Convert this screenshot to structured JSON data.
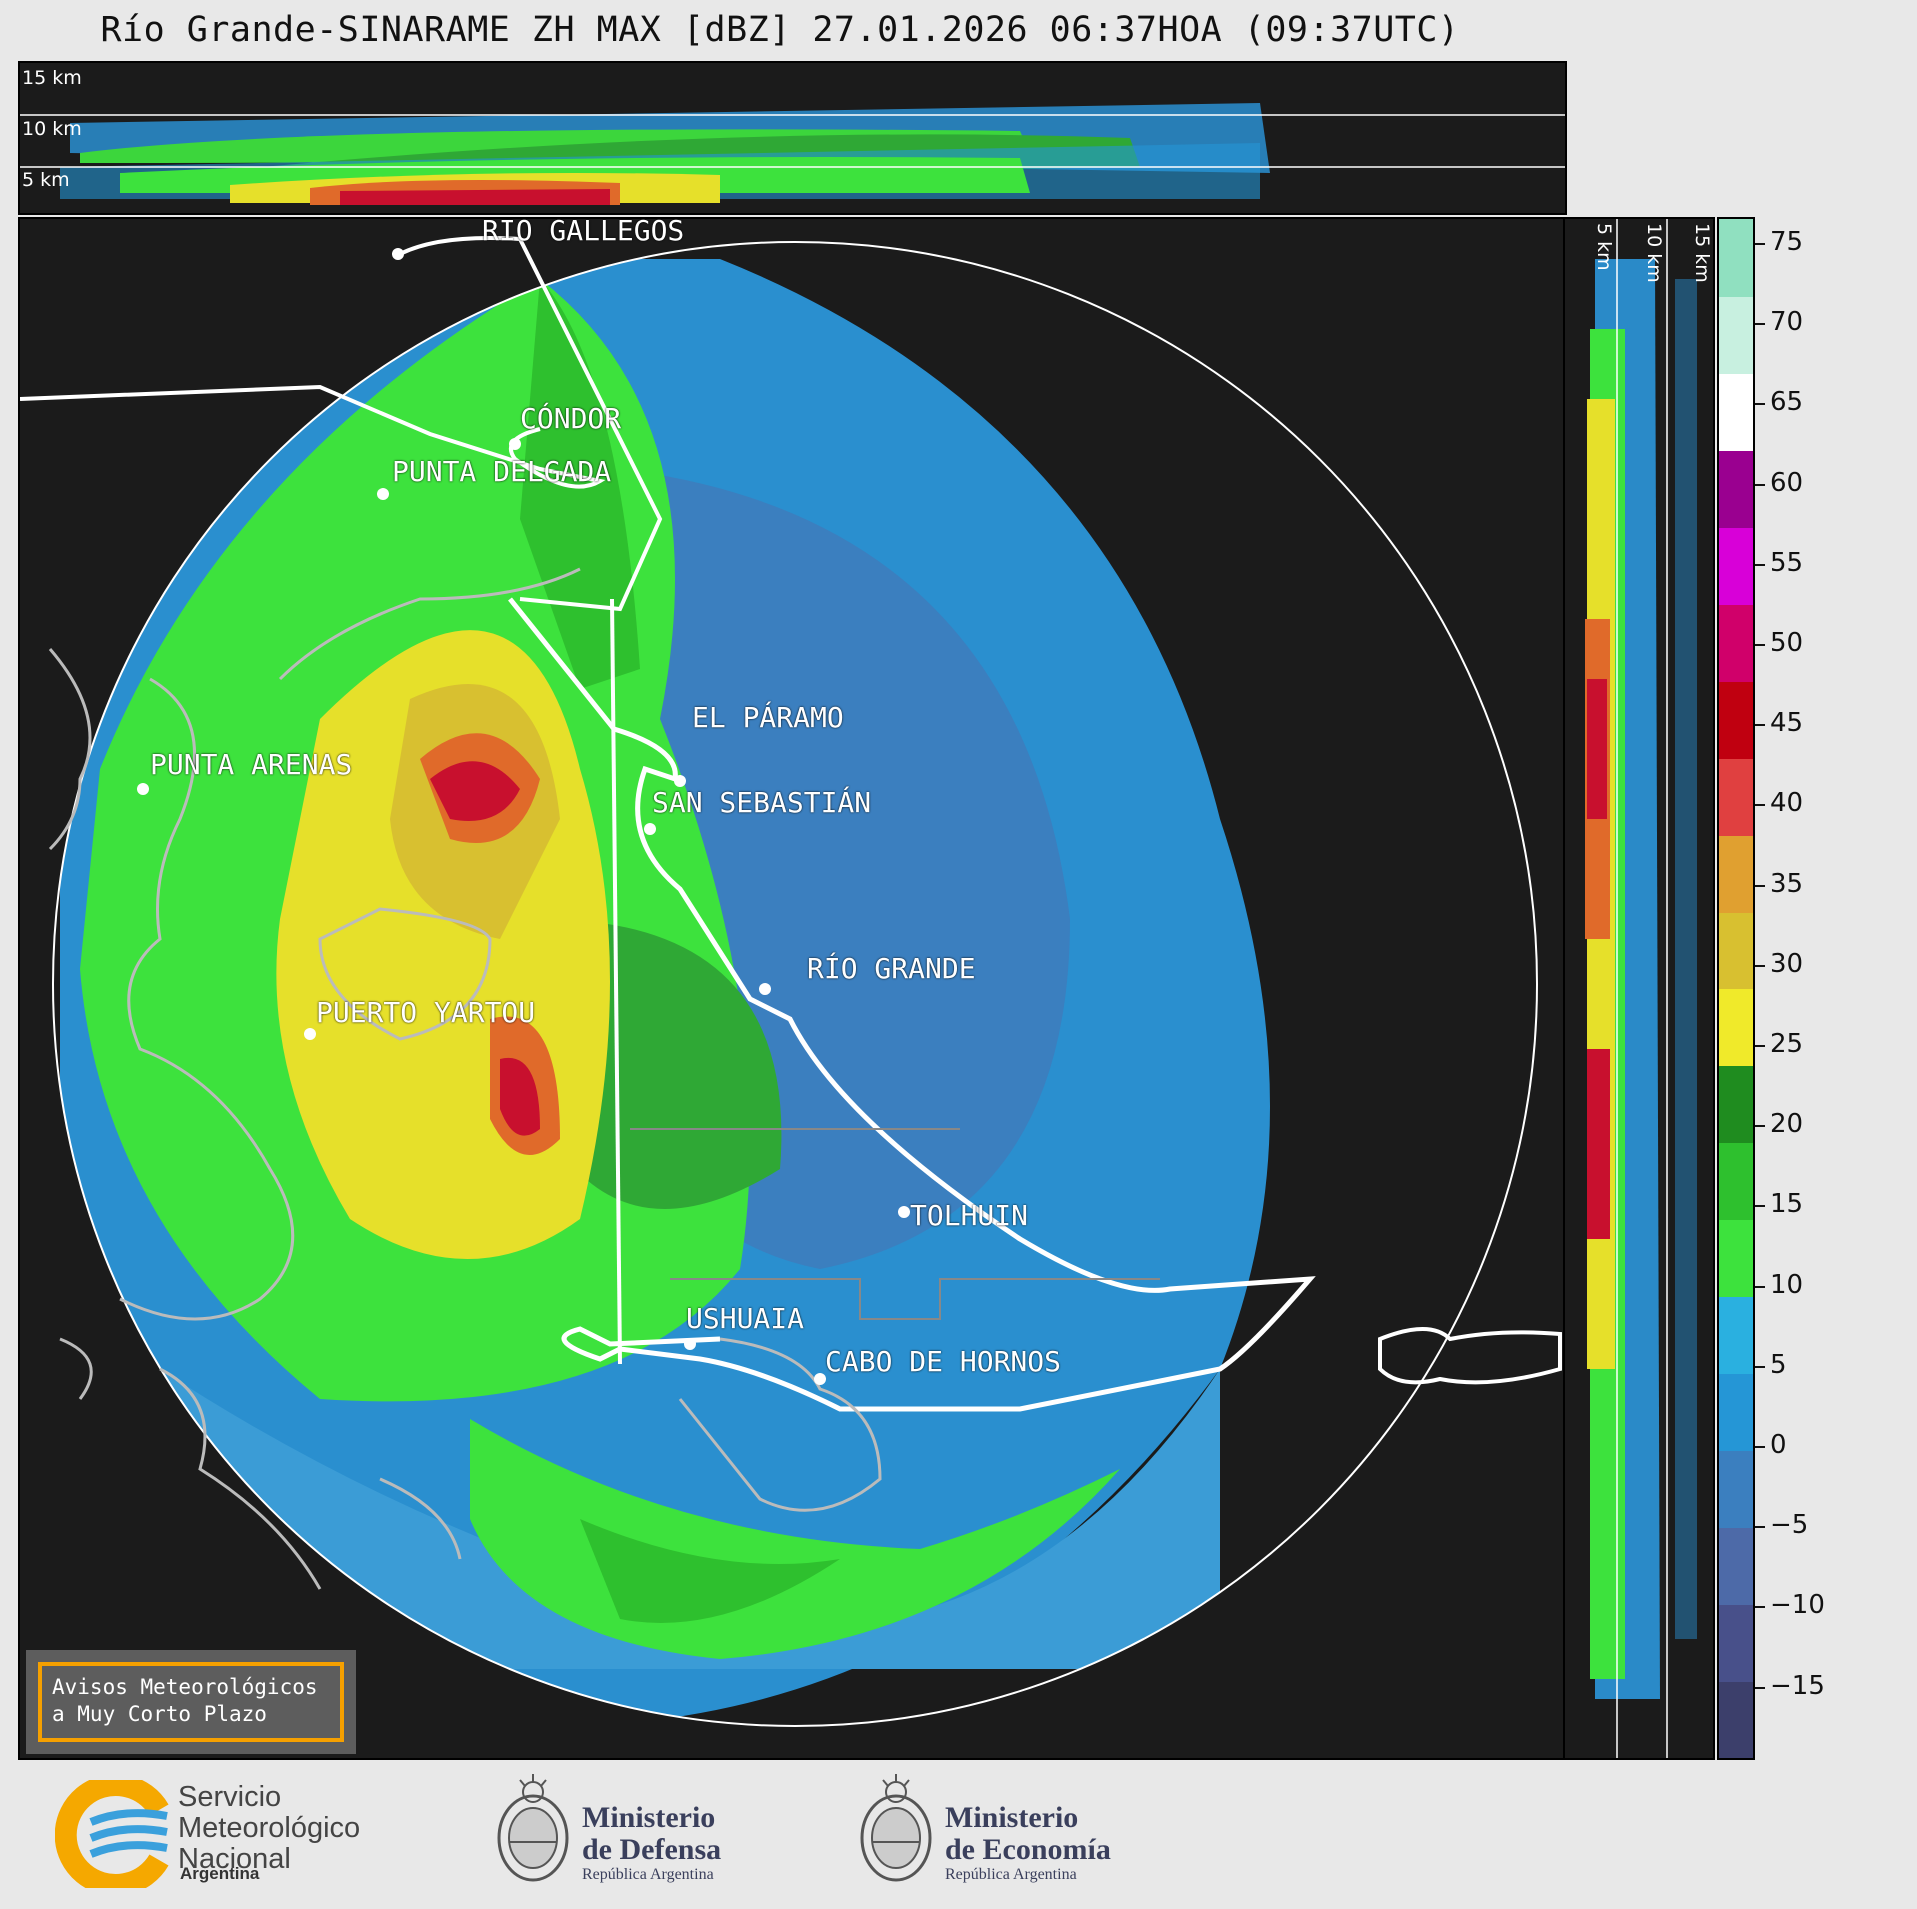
{
  "title": "Río Grande-SINARAME ZH MAX [dBZ] 27.01.2026 06:37HOA (09:37UTC)",
  "top_section": {
    "height_labels": [
      "15 km",
      "10 km",
      "5 km"
    ]
  },
  "side_section": {
    "height_labels": [
      "5 km",
      "10 km",
      "15 km"
    ]
  },
  "locations": [
    {
      "name": "RÍO GALLEGOS"
    },
    {
      "name": "CÓNDOR"
    },
    {
      "name": "PUNTA DELGADA"
    },
    {
      "name": "EL PÁRAMO"
    },
    {
      "name": "PUNTA ARENAS"
    },
    {
      "name": "SAN SEBASTIÁN"
    },
    {
      "name": "RÍO GRANDE"
    },
    {
      "name": "PUERTO YARTOU"
    },
    {
      "name": "TOLHUIN"
    },
    {
      "name": "USHUAIA"
    },
    {
      "name": "CABO DE HORNOS"
    }
  ],
  "colorbar": {
    "unit": "dBZ",
    "ticks": [
      "75",
      "70",
      "65",
      "60",
      "55",
      "50",
      "45",
      "40",
      "35",
      "30",
      "25",
      "20",
      "15",
      "10",
      "5",
      "0",
      "−5",
      "−10",
      "−15"
    ],
    "colors": [
      "#3c3f6b",
      "#48508a",
      "#4d6aa8",
      "#3b7fbf",
      "#2596d6",
      "#2ab0e0",
      "#3de23d",
      "#2ec02e",
      "#1f8c1f",
      "#f0ea2a",
      "#d8c030",
      "#e0a030",
      "#e04040",
      "#c00010",
      "#d0006a",
      "#d800d8",
      "#9a0090",
      "#ffffff",
      "#c8f0e0",
      "#90e0c0"
    ]
  },
  "warning_box": {
    "line1": "Avisos Meteorológicos",
    "line2": "a Muy Corto Plazo"
  },
  "logos": {
    "smn": {
      "line1": "Servicio",
      "line2": "Meteorológico",
      "line3": "Nacional",
      "country": "Argentina"
    },
    "defensa": {
      "line1": "Ministerio",
      "line2": "de Defensa",
      "sub": "República Argentina"
    },
    "economia": {
      "line1": "Ministerio",
      "line2": "de Economía",
      "sub": "República Argentina"
    }
  }
}
